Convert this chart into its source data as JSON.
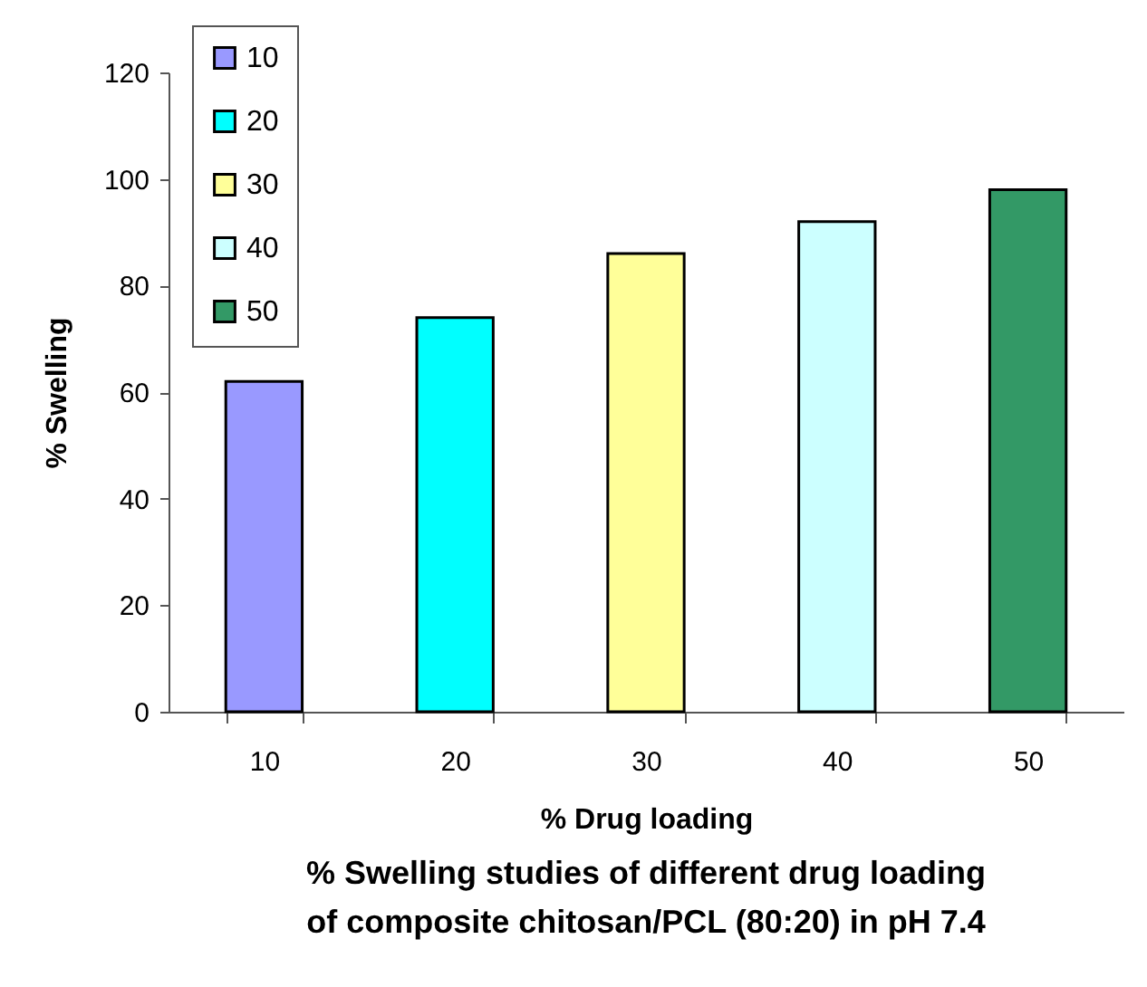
{
  "chart_data": {
    "type": "bar",
    "title": "% Swelling studies of different drug loading of composite chitosan/PCL (80:20) in pH 7.4",
    "xlabel": "% Drug loading",
    "ylabel": "% Swelling",
    "categories": [
      "10",
      "20",
      "30",
      "40",
      "50"
    ],
    "series": [
      {
        "name": "10",
        "color": "#9999ff",
        "values": [
          62,
          null,
          null,
          null,
          null
        ]
      },
      {
        "name": "20",
        "color": "#00ffff",
        "values": [
          null,
          74,
          null,
          null,
          null
        ]
      },
      {
        "name": "30",
        "color": "#ffff99",
        "values": [
          null,
          null,
          86,
          null,
          null
        ]
      },
      {
        "name": "40",
        "color": "#ccffff",
        "values": [
          null,
          null,
          null,
          92,
          null
        ]
      },
      {
        "name": "50",
        "color": "#339966",
        "values": [
          null,
          null,
          null,
          null,
          98
        ]
      }
    ],
    "ylim": [
      0,
      120
    ],
    "yticks": [
      0,
      20,
      40,
      60,
      80,
      100,
      120
    ],
    "grid": false,
    "legend": "top left"
  }
}
